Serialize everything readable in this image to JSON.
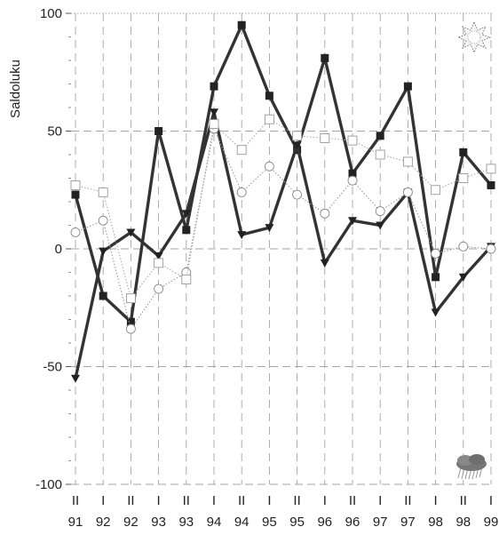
{
  "chart_data": {
    "type": "line",
    "ylabel": "Saldoluku",
    "ylim": [
      -100,
      100
    ],
    "yticks": [
      -100,
      -50,
      0,
      50,
      100
    ],
    "x_period": [
      "II",
      "I",
      "II",
      "I",
      "II",
      "I",
      "II",
      "I",
      "II",
      "I",
      "II",
      "I",
      "II",
      "I",
      "II",
      "I"
    ],
    "x_year": [
      "91",
      "92",
      "92",
      "93",
      "93",
      "94",
      "94",
      "95",
      "95",
      "96",
      "96",
      "97",
      "97",
      "98",
      "98",
      "99"
    ],
    "grid": true,
    "series": [
      {
        "marker": "filled-square",
        "style": "solid-thick",
        "color": "#333333",
        "values": [
          23,
          -20,
          -31,
          50,
          8,
          69,
          95,
          65,
          42,
          81,
          32,
          48,
          69,
          -12,
          41,
          27
        ]
      },
      {
        "marker": "filled-triangle-down",
        "style": "solid-thick",
        "color": "#333333",
        "values": [
          -55,
          -1,
          7,
          -3,
          15,
          58,
          6,
          9,
          44,
          -6,
          12,
          10,
          24,
          -27,
          -12,
          1
        ]
      },
      {
        "marker": "open-circle",
        "style": "dotted",
        "color": "#999999",
        "values": [
          7,
          12,
          -34,
          -17,
          -10,
          51,
          24,
          35,
          23,
          15,
          29,
          16,
          24,
          -2,
          1,
          0
        ]
      },
      {
        "marker": "open-square",
        "style": "dotted",
        "color": "#aaaaaa",
        "values": [
          27,
          24,
          -21,
          -6,
          -13,
          53,
          42,
          55,
          48,
          47,
          46,
          40,
          37,
          25,
          30,
          34
        ]
      }
    ],
    "annotations": [
      {
        "icon": "sun-icon",
        "meaning": "optimism (top)"
      },
      {
        "icon": "rain-cloud-icon",
        "meaning": "pessimism (bottom)"
      }
    ]
  }
}
